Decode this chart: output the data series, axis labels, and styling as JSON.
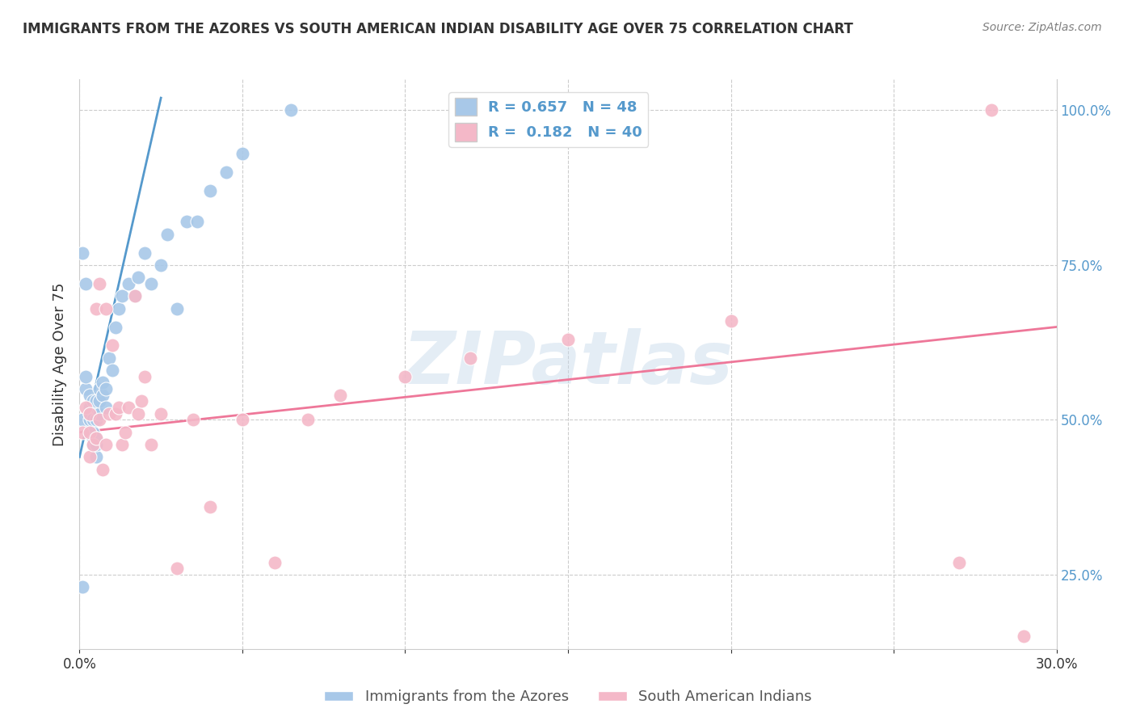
{
  "title": "IMMIGRANTS FROM THE AZORES VS SOUTH AMERICAN INDIAN DISABILITY AGE OVER 75 CORRELATION CHART",
  "source": "Source: ZipAtlas.com",
  "ylabel": "Disability Age Over 75",
  "xlim": [
    0.0,
    0.3
  ],
  "ylim": [
    0.13,
    1.05
  ],
  "ytick_vals": [
    0.25,
    0.5,
    0.75,
    1.0
  ],
  "ytick_labels": [
    "25.0%",
    "50.0%",
    "75.0%",
    "100.0%"
  ],
  "xtick_vals": [
    0.0,
    0.05,
    0.1,
    0.15,
    0.2,
    0.25,
    0.3
  ],
  "xtick_labels": [
    "0.0%",
    "",
    "",
    "",
    "",
    "",
    "30.0%"
  ],
  "blue_color": "#a8c8e8",
  "pink_color": "#f4b8c8",
  "blue_line_color": "#5599cc",
  "pink_line_color": "#ee7799",
  "bottom_legend_blue": "Immigrants from the Azores",
  "bottom_legend_pink": "South American Indians",
  "watermark": "ZIPatlas",
  "background_color": "#ffffff",
  "grid_color": "#cccccc",
  "title_color": "#333333",
  "right_tick_color": "#5599cc",
  "legend_text_color": "#5599cc",
  "blue_x": [
    0.001,
    0.001,
    0.002,
    0.002,
    0.002,
    0.003,
    0.003,
    0.003,
    0.003,
    0.003,
    0.004,
    0.004,
    0.004,
    0.004,
    0.004,
    0.005,
    0.005,
    0.005,
    0.005,
    0.005,
    0.005,
    0.006,
    0.006,
    0.006,
    0.007,
    0.007,
    0.008,
    0.008,
    0.009,
    0.01,
    0.011,
    0.012,
    0.013,
    0.015,
    0.017,
    0.018,
    0.02,
    0.022,
    0.025,
    0.027,
    0.03,
    0.033,
    0.036,
    0.04,
    0.045,
    0.05,
    0.065,
    0.001
  ],
  "blue_y": [
    0.5,
    0.23,
    0.55,
    0.57,
    0.72,
    0.48,
    0.5,
    0.51,
    0.52,
    0.54,
    0.46,
    0.47,
    0.48,
    0.5,
    0.53,
    0.44,
    0.46,
    0.47,
    0.5,
    0.52,
    0.53,
    0.51,
    0.53,
    0.55,
    0.54,
    0.56,
    0.52,
    0.55,
    0.6,
    0.58,
    0.65,
    0.68,
    0.7,
    0.72,
    0.7,
    0.73,
    0.77,
    0.72,
    0.75,
    0.8,
    0.68,
    0.82,
    0.82,
    0.87,
    0.9,
    0.93,
    1.0,
    0.77
  ],
  "pink_x": [
    0.001,
    0.002,
    0.003,
    0.003,
    0.003,
    0.004,
    0.005,
    0.005,
    0.006,
    0.006,
    0.007,
    0.008,
    0.008,
    0.009,
    0.01,
    0.011,
    0.012,
    0.013,
    0.014,
    0.015,
    0.017,
    0.018,
    0.019,
    0.02,
    0.022,
    0.025,
    0.03,
    0.035,
    0.04,
    0.05,
    0.06,
    0.07,
    0.08,
    0.1,
    0.12,
    0.15,
    0.2,
    0.27,
    0.28,
    0.29
  ],
  "pink_y": [
    0.48,
    0.52,
    0.44,
    0.48,
    0.51,
    0.46,
    0.47,
    0.68,
    0.72,
    0.5,
    0.42,
    0.46,
    0.68,
    0.51,
    0.62,
    0.51,
    0.52,
    0.46,
    0.48,
    0.52,
    0.7,
    0.51,
    0.53,
    0.57,
    0.46,
    0.51,
    0.26,
    0.5,
    0.36,
    0.5,
    0.27,
    0.5,
    0.54,
    0.57,
    0.6,
    0.63,
    0.66,
    0.27,
    1.0,
    0.15
  ],
  "blue_trend_x": [
    0.0,
    0.025
  ],
  "blue_trend_y": [
    0.44,
    1.02
  ],
  "pink_trend_x": [
    0.0,
    0.3
  ],
  "pink_trend_y": [
    0.48,
    0.65
  ]
}
